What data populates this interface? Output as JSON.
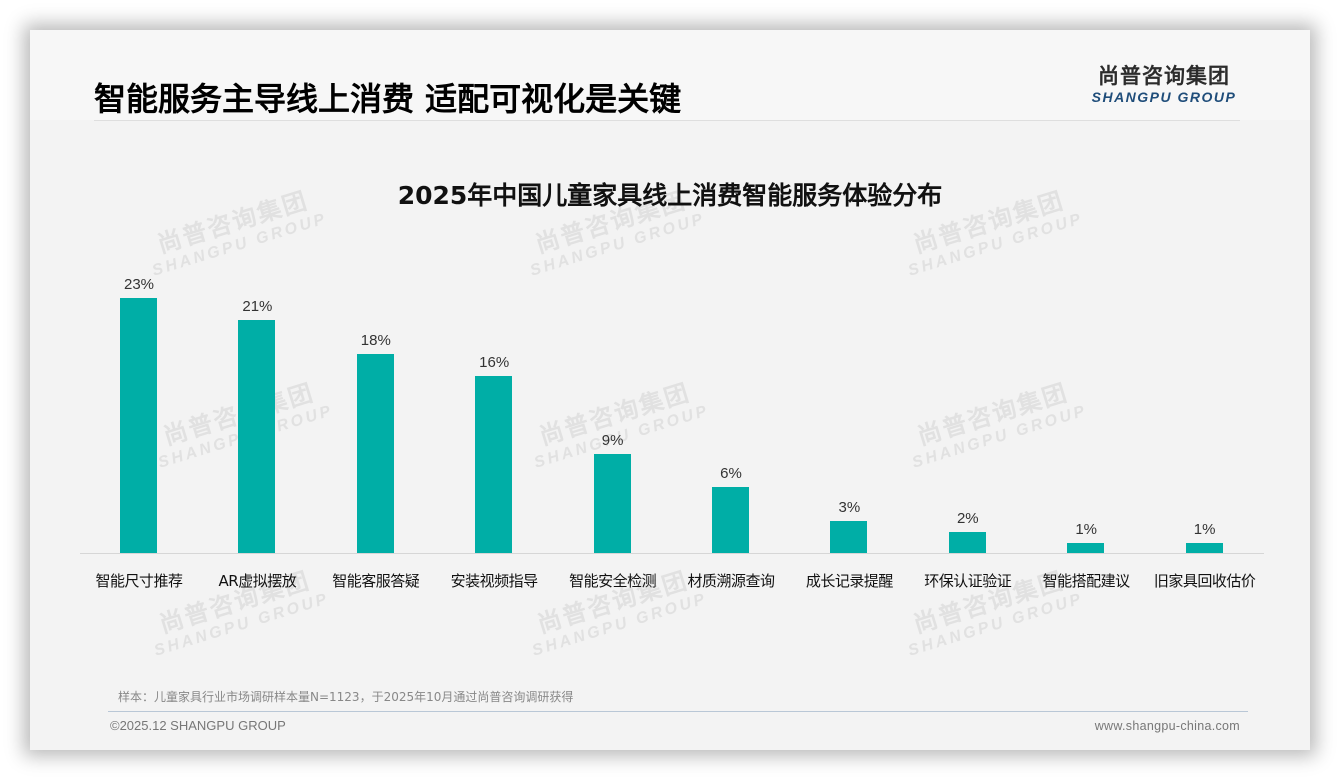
{
  "header": {
    "title": "智能服务主导线上消费 适配可视化是关键",
    "logo_cn": "尚普咨询集团",
    "logo_en": "SHANGPU GROUP"
  },
  "watermark": {
    "cn": "尚普咨询集团",
    "en": "SHANGPU GROUP"
  },
  "colors": {
    "bar": "#00aea6",
    "logo_en": "#1f4d7a",
    "slide_bg": "#f3f3f3"
  },
  "chart_data": {
    "type": "bar",
    "title": "2025年中国儿童家具线上消费智能服务体验分布",
    "xlabel": "",
    "ylabel": "",
    "ylim": [
      0,
      25
    ],
    "grid": false,
    "legend": null,
    "categories": [
      "智能尺寸推荐",
      "AR虚拟摆放",
      "智能客服答疑",
      "安装视频指导",
      "智能安全检测",
      "材质溯源查询",
      "成长记录提醒",
      "环保认证验证",
      "智能搭配建议",
      "旧家具回收估价"
    ],
    "values": [
      23,
      21,
      18,
      16,
      9,
      6,
      3,
      2,
      1,
      1
    ],
    "value_labels": [
      "23%",
      "21%",
      "18%",
      "16%",
      "9%",
      "6%",
      "3%",
      "2%",
      "1%",
      "1%"
    ],
    "unit": "%"
  },
  "footer": {
    "source_note": "样本：儿童家具行业市场调研样本量N=1123，于2025年10月通过尚普咨询调研获得",
    "copyright": "©2025.12 SHANGPU GROUP",
    "website": "www.shangpu-china.com"
  }
}
